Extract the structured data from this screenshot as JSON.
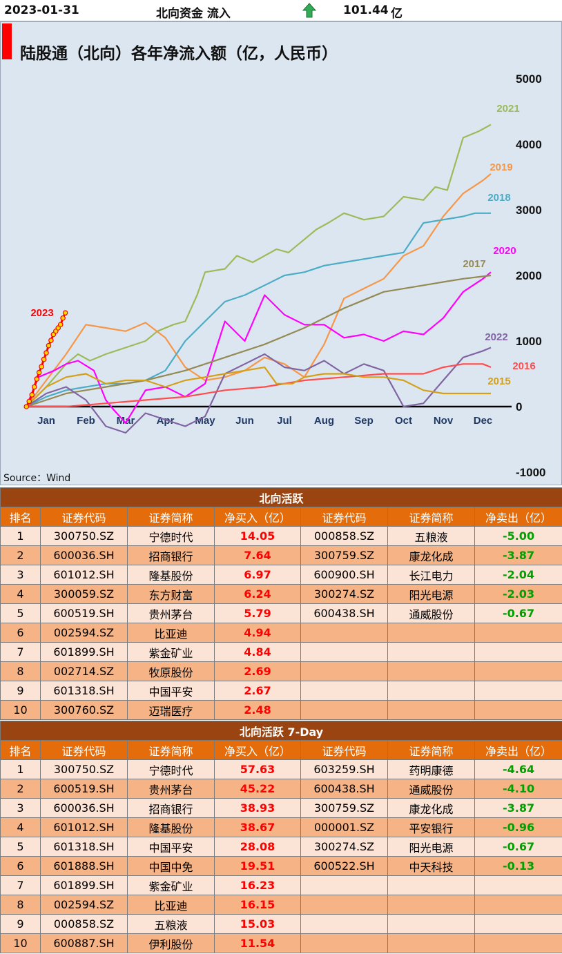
{
  "header": {
    "date": "2023-01-31",
    "label": "北向资金 流入",
    "value": "101.44",
    "unit": "亿"
  },
  "chart": {
    "title": "陆股通（北向）各年净流入额（亿，人民币）",
    "source": "Source：Wind"
  },
  "chart_data": {
    "type": "line",
    "title": "陆股通（北向）各年净流入额（亿，人民币）",
    "x_ticks": [
      "Jan",
      "Feb",
      "Mar",
      "Apr",
      "May",
      "Jun",
      "Jul",
      "Aug",
      "Sep",
      "Oct",
      "Nov",
      "Dec"
    ],
    "y_ticks": [
      "5000",
      "4000",
      "3000",
      "2000",
      "1000",
      "0",
      "-1000"
    ],
    "ylim": [
      -1000,
      5000
    ],
    "series": [
      {
        "name": "2021",
        "color": "#9bbb59",
        "x": [
          0,
          0.5,
          1,
          1.3,
          1.6,
          2,
          2.5,
          3,
          3.3,
          3.7,
          4,
          4.3,
          4.5,
          5,
          5.3,
          5.7,
          6,
          6.3,
          6.6,
          7,
          7.3,
          7.6,
          8,
          8.5,
          9,
          9.5,
          10,
          10.3,
          10.6,
          11,
          11.4,
          11.7
        ],
        "y": [
          0,
          300,
          650,
          800,
          700,
          800,
          900,
          1000,
          1150,
          1250,
          1300,
          1700,
          2050,
          2100,
          2300,
          2200,
          2300,
          2400,
          2350,
          2550,
          2700,
          2800,
          2950,
          2850,
          2900,
          3200,
          3150,
          3350,
          3300,
          4100,
          4200,
          4300
        ]
      },
      {
        "name": "2019",
        "color": "#f79646",
        "x": [
          0,
          0.5,
          1,
          1.5,
          2,
          2.5,
          3,
          3.5,
          4,
          4.5,
          5,
          5.5,
          6,
          6.5,
          7,
          7.5,
          8,
          8.5,
          9,
          9.5,
          10,
          10.5,
          11,
          11.5,
          11.7
        ],
        "y": [
          0,
          400,
          800,
          1250,
          1200,
          1150,
          1280,
          1050,
          600,
          400,
          450,
          550,
          750,
          650,
          450,
          950,
          1650,
          1800,
          1950,
          2300,
          2450,
          2900,
          3250,
          3450,
          3550
        ]
      },
      {
        "name": "2018",
        "color": "#4bacc6",
        "x": [
          0,
          0.5,
          1,
          1.5,
          2,
          2.5,
          3,
          3.5,
          4,
          4.5,
          5,
          5.5,
          6,
          6.5,
          7,
          7.5,
          8,
          8.5,
          9,
          9.5,
          10,
          10.5,
          11,
          11.3,
          11.7
        ],
        "y": [
          0,
          150,
          250,
          300,
          350,
          350,
          400,
          550,
          1000,
          1300,
          1600,
          1700,
          1850,
          2000,
          2050,
          2150,
          2200,
          2250,
          2300,
          2350,
          2800,
          2850,
          2900,
          2950,
          2950
        ]
      },
      {
        "name": "2020",
        "color": "#ff00ff",
        "x": [
          0,
          0.3,
          0.7,
          1,
          1.3,
          1.7,
          2,
          2.2,
          2.5,
          3,
          3.5,
          4,
          4.5,
          5,
          5.5,
          6,
          6.5,
          7,
          7.5,
          8,
          8.5,
          9,
          9.5,
          10,
          10.5,
          11,
          11.5,
          11.7
        ],
        "y": [
          0,
          450,
          550,
          650,
          700,
          550,
          100,
          -50,
          -250,
          250,
          300,
          150,
          350,
          1300,
          1000,
          1700,
          1400,
          1250,
          1250,
          1050,
          1100,
          1000,
          1150,
          1100,
          1350,
          1750,
          1950,
          2050
        ]
      },
      {
        "name": "2017",
        "color": "#948a54",
        "x": [
          0,
          1,
          2,
          3,
          4,
          5,
          6,
          7,
          8,
          9,
          10,
          10.5,
          11,
          11.7
        ],
        "y": [
          0,
          200,
          300,
          400,
          550,
          750,
          950,
          1200,
          1500,
          1750,
          1850,
          1900,
          1950,
          2000
        ]
      },
      {
        "name": "2022",
        "color": "#8064a2",
        "x": [
          0,
          0.5,
          1,
          1.5,
          2,
          2.5,
          3,
          3.5,
          4,
          4.5,
          5,
          5.5,
          6,
          6.5,
          7,
          7.5,
          8,
          8.5,
          9,
          9.5,
          10,
          10.5,
          11,
          11.5,
          11.7
        ],
        "y": [
          0,
          200,
          300,
          100,
          -300,
          -400,
          -100,
          -200,
          -300,
          -150,
          500,
          650,
          800,
          600,
          550,
          700,
          500,
          650,
          550,
          0,
          50,
          400,
          750,
          850,
          900
        ]
      },
      {
        "name": "2016",
        "color": "#ff4c4c",
        "x": [
          0,
          1,
          2,
          3,
          4,
          5,
          6,
          7,
          8,
          9,
          10,
          10.5,
          11,
          11.5,
          11.7
        ],
        "y": [
          0,
          0,
          50,
          100,
          150,
          250,
          300,
          400,
          450,
          500,
          500,
          600,
          650,
          650,
          600
        ]
      },
      {
        "name": "2015",
        "color": "#d4a017",
        "x": [
          0,
          0.5,
          1,
          1.5,
          2,
          2.5,
          3,
          3.5,
          4,
          4.5,
          5,
          5.5,
          6,
          6.3,
          6.7,
          7,
          7.5,
          8,
          8.5,
          9,
          9.5,
          10,
          10.5,
          11,
          11.7
        ],
        "y": [
          0,
          300,
          450,
          500,
          350,
          400,
          400,
          300,
          400,
          450,
          500,
          550,
          600,
          350,
          350,
          450,
          500,
          500,
          450,
          450,
          400,
          250,
          200,
          200,
          200
        ]
      },
      {
        "name": "2023",
        "color": "#ff0000",
        "x": [
          0,
          0.07,
          0.14,
          0.2,
          0.26,
          0.32,
          0.38,
          0.44,
          0.5,
          0.56,
          0.62,
          0.68,
          0.74,
          0.8,
          0.86,
          0.92,
          0.98
        ],
        "y": [
          0,
          80,
          180,
          300,
          420,
          520,
          610,
          720,
          820,
          930,
          1010,
          1100,
          1150,
          1200,
          1250,
          1350,
          1430
        ]
      }
    ]
  },
  "table1": {
    "title": "北向活跃",
    "columns": [
      "排名",
      "证券代码",
      "证券简称",
      "净买入（亿）",
      "证券代码",
      "证券简称",
      "净卖出（亿）"
    ],
    "rows": [
      [
        "1",
        "300750.SZ",
        "宁德时代",
        "14.05",
        "000858.SZ",
        "五粮液",
        "-5.00"
      ],
      [
        "2",
        "600036.SH",
        "招商银行",
        "7.64",
        "300759.SZ",
        "康龙化成",
        "-3.87"
      ],
      [
        "3",
        "601012.SH",
        "隆基股份",
        "6.97",
        "600900.SH",
        "长江电力",
        "-2.04"
      ],
      [
        "4",
        "300059.SZ",
        "东方财富",
        "6.24",
        "300274.SZ",
        "阳光电源",
        "-2.03"
      ],
      [
        "5",
        "600519.SH",
        "贵州茅台",
        "5.79",
        "600438.SH",
        "通威股份",
        "-0.67"
      ],
      [
        "6",
        "002594.SZ",
        "比亚迪",
        "4.94",
        "",
        "",
        ""
      ],
      [
        "7",
        "601899.SH",
        "紫金矿业",
        "4.84",
        "",
        "",
        ""
      ],
      [
        "8",
        "002714.SZ",
        "牧原股份",
        "2.69",
        "",
        "",
        ""
      ],
      [
        "9",
        "601318.SH",
        "中国平安",
        "2.67",
        "",
        "",
        ""
      ],
      [
        "10",
        "300760.SZ",
        "迈瑞医疗",
        "2.48",
        "",
        "",
        ""
      ]
    ]
  },
  "table2": {
    "title": "北向活跃 7-Day",
    "columns": [
      "排名",
      "证券代码",
      "证券简称",
      "净买入（亿）",
      "证券代码",
      "证券简称",
      "净卖出（亿）"
    ],
    "rows": [
      [
        "1",
        "300750.SZ",
        "宁德时代",
        "57.63",
        "603259.SH",
        "药明康德",
        "-4.64"
      ],
      [
        "2",
        "600519.SH",
        "贵州茅台",
        "45.22",
        "600438.SH",
        "通威股份",
        "-4.10"
      ],
      [
        "3",
        "600036.SH",
        "招商银行",
        "38.93",
        "300759.SZ",
        "康龙化成",
        "-3.87"
      ],
      [
        "4",
        "601012.SH",
        "隆基股份",
        "38.67",
        "000001.SZ",
        "平安银行",
        "-0.96"
      ],
      [
        "5",
        "601318.SH",
        "中国平安",
        "28.08",
        "300274.SZ",
        "阳光电源",
        "-0.67"
      ],
      [
        "6",
        "601888.SH",
        "中国中免",
        "19.51",
        "600522.SH",
        "中天科技",
        "-0.13"
      ],
      [
        "7",
        "601899.SH",
        "紫金矿业",
        "16.23",
        "",
        "",
        ""
      ],
      [
        "8",
        "002594.SZ",
        "比亚迪",
        "16.15",
        "",
        "",
        ""
      ],
      [
        "9",
        "000858.SZ",
        "五粮液",
        "15.03",
        "",
        "",
        ""
      ],
      [
        "10",
        "600887.SH",
        "伊利股份",
        "11.54",
        "",
        "",
        ""
      ]
    ]
  }
}
